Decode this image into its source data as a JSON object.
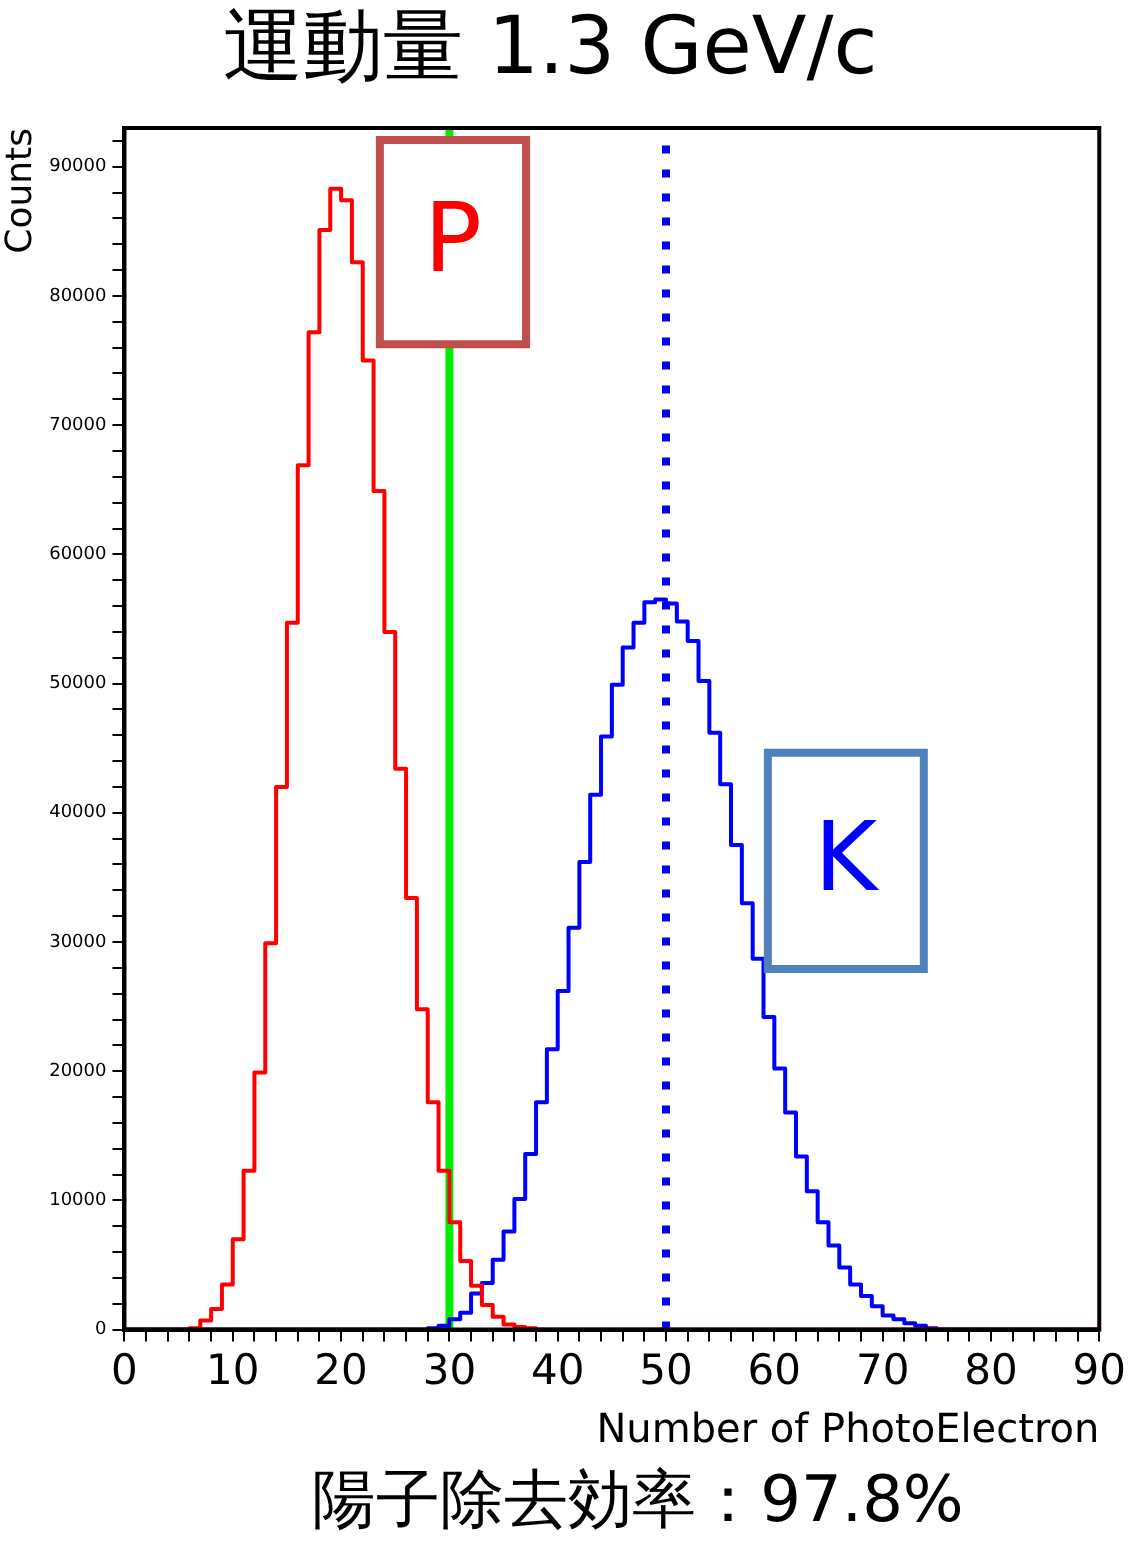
{
  "chart_data": {
    "type": "histogram",
    "title": "運動量 1.3 GeV/c",
    "xlabel": "Number of PhotoElectron",
    "ylabel": "Counts",
    "annotations": [
      "陽子除去効率：97.8%"
    ],
    "bins": [
      0,
      1,
      2,
      3,
      4,
      5,
      6,
      7,
      8,
      9,
      10,
      11,
      12,
      13,
      14,
      15,
      16,
      17,
      18,
      19,
      20,
      21,
      22,
      23,
      24,
      25,
      26,
      27,
      28,
      29,
      30,
      31,
      32,
      33,
      34,
      35,
      36,
      37,
      38,
      39,
      40,
      41,
      42,
      43,
      44,
      45,
      46,
      47,
      48,
      49,
      50,
      51,
      52,
      53,
      54,
      55,
      56,
      57,
      58,
      59,
      60,
      61,
      62,
      63,
      64,
      65,
      66,
      67,
      68,
      69,
      70,
      71,
      72,
      73,
      74,
      75,
      76,
      77,
      78,
      79,
      80,
      81,
      82,
      83,
      84,
      85,
      86,
      87,
      88,
      89,
      90
    ],
    "series": [
      {
        "name": "P",
        "color": "#ff0000",
        "values": [
          0,
          0,
          0,
          0,
          0,
          0,
          100,
          700,
          1600,
          3500,
          7000,
          12300,
          19900,
          29900,
          42000,
          54700,
          66900,
          77200,
          85100,
          88300,
          87400,
          82600,
          75000,
          64900,
          54000,
          43400,
          33400,
          24800,
          17600,
          12300,
          8300,
          5300,
          3400,
          1900,
          1000,
          400,
          200,
          100,
          0,
          0,
          0,
          0,
          0,
          0,
          0,
          0,
          0,
          0,
          0,
          0,
          0,
          0,
          0,
          0,
          0,
          0,
          0,
          0,
          0,
          0,
          0,
          0,
          0,
          0,
          0,
          0,
          0,
          0,
          0,
          0,
          0,
          0,
          0,
          0,
          0,
          0,
          0,
          0,
          0,
          0,
          0,
          0,
          0,
          0,
          0,
          0,
          0,
          0,
          0,
          0
        ]
      },
      {
        "name": "K",
        "color": "#0000ff",
        "values": [
          0,
          0,
          0,
          0,
          0,
          0,
          0,
          0,
          0,
          0,
          0,
          0,
          0,
          0,
          0,
          0,
          0,
          0,
          0,
          0,
          0,
          0,
          0,
          0,
          0,
          0,
          0,
          0,
          100,
          300,
          800,
          1300,
          2800,
          3600,
          5400,
          7600,
          10100,
          13600,
          17600,
          21700,
          26200,
          31100,
          36200,
          41400,
          45900,
          49900,
          52800,
          54700,
          56300,
          56500,
          56200,
          54800,
          53300,
          50200,
          46200,
          42200,
          37500,
          33000,
          28700,
          24200,
          20200,
          16800,
          13400,
          10700,
          8300,
          6500,
          4800,
          3500,
          2600,
          1800,
          1100,
          800,
          500,
          300,
          100,
          0,
          0,
          0,
          0,
          0,
          0,
          0,
          0,
          0,
          0,
          0,
          0,
          0,
          0,
          0
        ]
      }
    ],
    "xlim": [
      0,
      90
    ],
    "xticks": [
      0,
      {
        "value": 2,
        "label": null
      },
      {
        "value": 4,
        "label": null
      },
      {
        "value": 6,
        "label": null
      },
      {
        "value": 8,
        "label": null
      },
      10,
      {
        "value": 12,
        "label": null
      },
      {
        "value": 14,
        "label": null
      },
      {
        "value": 16,
        "label": null
      },
      {
        "value": 18,
        "label": null
      },
      20,
      {
        "value": 22,
        "label": null
      },
      {
        "value": 24,
        "label": null
      },
      {
        "value": 26,
        "label": null
      },
      {
        "value": 28,
        "label": null
      },
      30,
      {
        "value": 32,
        "label": null
      },
      {
        "value": 34,
        "label": null
      },
      {
        "value": 36,
        "label": null
      },
      {
        "value": 38,
        "label": null
      },
      40,
      {
        "value": 42,
        "label": null
      },
      {
        "value": 44,
        "label": null
      },
      {
        "value": 46,
        "label": null
      },
      {
        "value": 48,
        "label": null
      },
      50,
      {
        "value": 52,
        "label": null
      },
      {
        "value": 54,
        "label": null
      },
      {
        "value": 56,
        "label": null
      },
      {
        "value": 58,
        "label": null
      },
      60,
      {
        "value": 62,
        "label": null
      },
      {
        "value": 64,
        "label": null
      },
      {
        "value": 66,
        "label": null
      },
      {
        "value": 68,
        "label": null
      },
      70,
      {
        "value": 72,
        "label": null
      },
      {
        "value": 74,
        "label": null
      },
      {
        "value": 76,
        "label": null
      },
      {
        "value": 78,
        "label": null
      },
      80,
      {
        "value": 82,
        "label": null
      },
      {
        "value": 84,
        "label": null
      },
      {
        "value": 86,
        "label": null
      },
      {
        "value": 88,
        "label": null
      },
      90
    ],
    "ylim": [
      0,
      93000
    ],
    "yticks": [
      0,
      {
        "value": 2000,
        "label": null
      },
      {
        "value": 4000,
        "label": null
      },
      {
        "value": 6000,
        "label": null
      },
      {
        "value": 8000,
        "label": null
      },
      10000,
      {
        "value": 12000,
        "label": null
      },
      {
        "value": 14000,
        "label": null
      },
      {
        "value": 16000,
        "label": null
      },
      {
        "value": 18000,
        "label": null
      },
      20000,
      {
        "value": 22000,
        "label": null
      },
      {
        "value": 24000,
        "label": null
      },
      {
        "value": 26000,
        "label": null
      },
      {
        "value": 28000,
        "label": null
      },
      30000,
      {
        "value": 32000,
        "label": null
      },
      {
        "value": 34000,
        "label": null
      },
      {
        "value": 36000,
        "label": null
      },
      {
        "value": 38000,
        "label": null
      },
      40000,
      {
        "value": 42000,
        "label": null
      },
      {
        "value": 44000,
        "label": null
      },
      {
        "value": 46000,
        "label": null
      },
      {
        "value": 48000,
        "label": null
      },
      50000,
      {
        "value": 52000,
        "label": null
      },
      {
        "value": 54000,
        "label": null
      },
      {
        "value": 56000,
        "label": null
      },
      {
        "value": 58000,
        "label": null
      },
      60000,
      {
        "value": 62000,
        "label": null
      },
      {
        "value": 64000,
        "label": null
      },
      {
        "value": 66000,
        "label": null
      },
      {
        "value": 68000,
        "label": null
      },
      70000,
      {
        "value": 72000,
        "label": null
      },
      {
        "value": 74000,
        "label": null
      },
      {
        "value": 76000,
        "label": null
      },
      {
        "value": 78000,
        "label": null
      },
      80000,
      {
        "value": 82000,
        "label": null
      },
      {
        "value": 84000,
        "label": null
      },
      {
        "value": 86000,
        "label": null
      },
      {
        "value": 88000,
        "label": null
      },
      90000,
      {
        "value": 92000,
        "label": null
      }
    ],
    "ref_lines": [
      {
        "axis": "x",
        "value": 30,
        "color": "#00ee00",
        "line_style": "solid"
      },
      {
        "axis": "x",
        "value": 50,
        "color": "#0000ff",
        "line_style": "dotted"
      }
    ],
    "grid": false,
    "legend": false
  }
}
